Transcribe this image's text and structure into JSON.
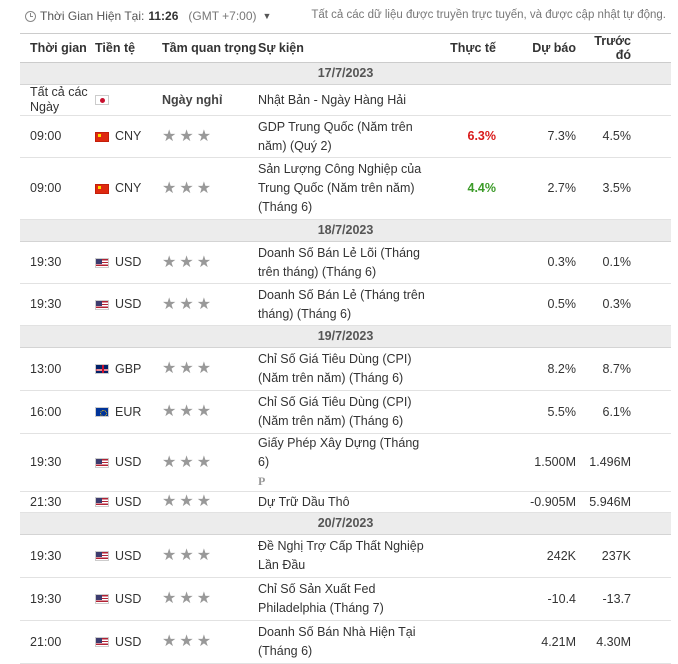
{
  "header": {
    "clock_label": "Thời Gian Hiện Tại:",
    "clock_time": "11:26",
    "timezone": "(GMT +7:00)",
    "note": "Tất cả các dữ liệu được truyền trực tuyến, và được cập nhật tự động."
  },
  "columns": [
    "Thời gian",
    "Tiền tệ",
    "Tầm quan trọng",
    "Sự kiện",
    "Thực tế",
    "Dự báo",
    "Trước đó"
  ],
  "colors": {
    "positive": "#3c9b29",
    "negative": "#d91a1a",
    "stars": "#999999"
  },
  "groups": [
    {
      "date": "17/7/2023",
      "rows": [
        {
          "time": "Tất cả các Ngày",
          "currency": "",
          "flag": "jp-flag",
          "importance": "Ngày nghỉ",
          "event": "Nhật Bản - Ngày Hàng Hải",
          "actual": "",
          "forecast": "",
          "previous": ""
        },
        {
          "time": "09:00",
          "currency": "CNY",
          "flag": "cn-flag",
          "importance": "3-star",
          "event": "GDP Trung Quốc (Năm trên năm) (Quý 2)",
          "actual": "6.3%",
          "actual_status": "negative",
          "forecast": "7.3%",
          "previous": "4.5%"
        },
        {
          "time": "09:00",
          "currency": "CNY",
          "flag": "cn-flag",
          "importance": "3-star",
          "event": "Sản Lượng Công Nghiệp của Trung Quốc (Năm trên năm) (Tháng 6)",
          "actual": "4.4%",
          "actual_status": "positive",
          "forecast": "2.7%",
          "previous": "3.5%"
        }
      ]
    },
    {
      "date": "18/7/2023",
      "rows": [
        {
          "time": "19:30",
          "currency": "USD",
          "flag": "us-flag",
          "importance": "3-star",
          "event": "Doanh Số Bán Lẻ Lõi (Tháng trên tháng) (Tháng 6)",
          "actual": "",
          "forecast": "0.3%",
          "previous": "0.1%"
        },
        {
          "time": "19:30",
          "currency": "USD",
          "flag": "us-flag",
          "importance": "3-star",
          "event": "Doanh Số Bán Lẻ (Tháng trên tháng) (Tháng 6)",
          "actual": "",
          "forecast": "0.5%",
          "previous": "0.3%"
        }
      ]
    },
    {
      "date": "19/7/2023",
      "rows": [
        {
          "time": "13:00",
          "currency": "GBP",
          "flag": "gb-flag",
          "importance": "3-star",
          "event": "Chỉ Số Giá Tiêu Dùng (CPI) (Năm trên năm) (Tháng 6)",
          "actual": "",
          "forecast": "8.2%",
          "previous": "8.7%"
        },
        {
          "time": "16:00",
          "currency": "EUR",
          "flag": "eu-flag",
          "importance": "3-star",
          "event": "Chỉ Số Giá Tiêu Dùng (CPI) (Năm trên năm) (Tháng 6)",
          "actual": "",
          "forecast": "5.5%",
          "previous": "6.1%"
        },
        {
          "time": "19:30",
          "currency": "USD",
          "flag": "us-flag",
          "importance": "3-star",
          "event": "Giấy Phép Xây Dựng (Tháng 6)",
          "event_marker": "P",
          "actual": "",
          "forecast": "1.500M",
          "previous": "1.496M"
        },
        {
          "time": "21:30",
          "currency": "USD",
          "flag": "us-flag",
          "importance": "3-star",
          "event": "Dự Trữ Dầu Thô",
          "actual": "",
          "forecast": "-0.905M",
          "previous": "5.946M"
        }
      ]
    },
    {
      "date": "20/7/2023",
      "rows": [
        {
          "time": "19:30",
          "currency": "USD",
          "flag": "us-flag",
          "importance": "3-star",
          "event": "Đề Nghị Trợ Cấp Thất Nghiệp Lần Đầu",
          "actual": "",
          "forecast": "242K",
          "previous": "237K"
        },
        {
          "time": "19:30",
          "currency": "USD",
          "flag": "us-flag",
          "importance": "3-star",
          "event": "Chỉ Số Sản Xuất Fed Philadelphia (Tháng 7)",
          "actual": "",
          "forecast": "-10.4",
          "previous": "-13.7"
        },
        {
          "time": "21:00",
          "currency": "USD",
          "flag": "us-flag",
          "importance": "3-star",
          "event": "Doanh Số Bán Nhà Hiện Tại (Tháng 6)",
          "actual": "",
          "forecast": "4.21M",
          "previous": "4.30M"
        }
      ]
    }
  ]
}
